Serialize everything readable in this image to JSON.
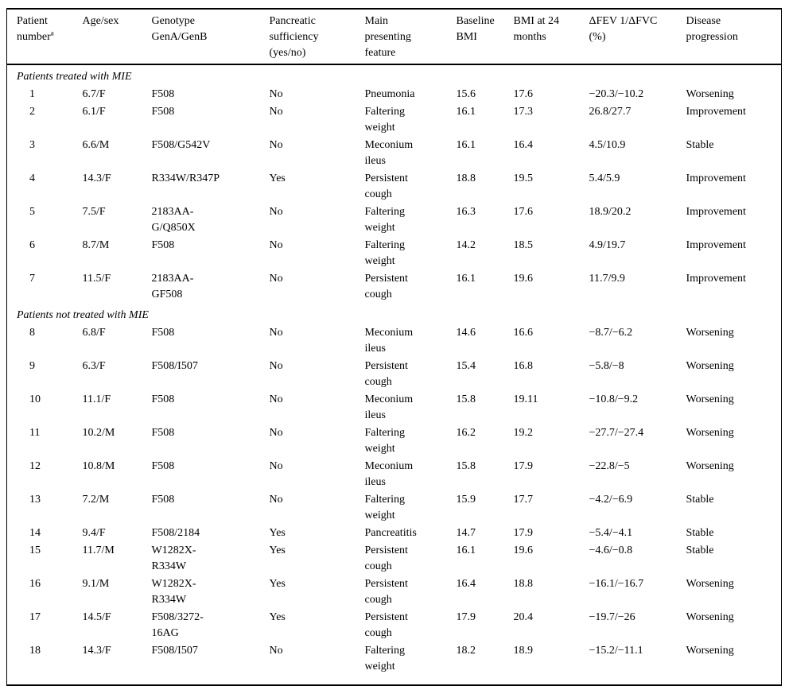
{
  "colors": {
    "text": "#000000",
    "background": "#ffffff",
    "rule": "#000000"
  },
  "table": {
    "columns": [
      {
        "id": "patient-number",
        "label": "Patient\nnumber",
        "superscript": "a"
      },
      {
        "id": "age-sex",
        "label": "Age/sex"
      },
      {
        "id": "genotype",
        "label": "Genotype\nGenA/GenB"
      },
      {
        "id": "pancreatic-sufficiency",
        "label": "Pancreatic\nsufficiency\n(yes/no)"
      },
      {
        "id": "main-presenting-feature",
        "label": "Main\npresenting\nfeature"
      },
      {
        "id": "baseline-bmi",
        "label": "Baseline\nBMI"
      },
      {
        "id": "bmi-24-months",
        "label": "BMI at 24\nmonths"
      },
      {
        "id": "dfev1-dfvc",
        "label": "ΔFEV 1/ΔFVC\n(%)"
      },
      {
        "id": "disease-progression",
        "label": "Disease\nprogression"
      }
    ],
    "sections": [
      {
        "title": "Patients treated with MIE",
        "rows": [
          [
            "1",
            "6.7/F",
            "F508",
            "No",
            "Pneumonia",
            "15.6",
            "17.6",
            "−20.3/−10.2",
            "Worsening"
          ],
          [
            "2",
            "6.1/F",
            "F508",
            "No",
            "Faltering\nweight",
            "16.1",
            "17.3",
            "26.8/27.7",
            "Improvement"
          ],
          [
            "3",
            "6.6/M",
            "F508/G542V",
            "No",
            "Meconium\nileus",
            "16.1",
            "16.4",
            "4.5/10.9",
            "Stable"
          ],
          [
            "4",
            "14.3/F",
            "R334W/R347P",
            "Yes",
            "Persistent\ncough",
            "18.8",
            "19.5",
            "5.4/5.9",
            "Improvement"
          ],
          [
            "5",
            "7.5/F",
            "2183AA-\nG/Q850X",
            "No",
            "Faltering\nweight",
            "16.3",
            "17.6",
            "18.9/20.2",
            "Improvement"
          ],
          [
            "6",
            "8.7/M",
            "F508",
            "No",
            "Faltering\nweight",
            "14.2",
            "18.5",
            "4.9/19.7",
            "Improvement"
          ],
          [
            "7",
            "11.5/F",
            "2183AA-\nGF508",
            "No",
            "Persistent\ncough",
            "16.1",
            "19.6",
            "11.7/9.9",
            "Improvement"
          ]
        ]
      },
      {
        "title": "Patients not treated with MIE",
        "rows": [
          [
            "8",
            "6.8/F",
            "F508",
            "No",
            "Meconium\nileus",
            "14.6",
            "16.6",
            "−8.7/−6.2",
            "Worsening"
          ],
          [
            "9",
            "6.3/F",
            "F508/I507",
            "No",
            "Persistent\ncough",
            "15.4",
            "16.8",
            "−5.8/−8",
            "Worsening"
          ],
          [
            "10",
            "11.1/F",
            "F508",
            "No",
            "Meconium\nileus",
            "15.8",
            "19.11",
            "−10.8/−9.2",
            "Worsening"
          ],
          [
            "11",
            "10.2/M",
            "F508",
            "No",
            "Faltering\nweight",
            "16.2",
            "19.2",
            "−27.7/−27.4",
            "Worsening"
          ],
          [
            "12",
            "10.8/M",
            "F508",
            "No",
            "Meconium\nileus",
            "15.8",
            "17.9",
            "−22.8/−5",
            "Worsening"
          ],
          [
            "13",
            "7.2/M",
            "F508",
            "No",
            "Faltering\nweight",
            "15.9",
            "17.7",
            "−4.2/−6.9",
            "Stable"
          ],
          [
            "14",
            "9.4/F",
            "F508/2184",
            "Yes",
            "Pancreatitis",
            "14.7",
            "17.9",
            "−5.4/−4.1",
            "Stable"
          ],
          [
            "15",
            "11.7/M",
            "W1282X-\nR334W",
            "Yes",
            "Persistent\ncough",
            "16.1",
            "19.6",
            "−4.6/−0.8",
            "Stable"
          ],
          [
            "16",
            "9.1/M",
            "W1282X-\nR334W",
            "Yes",
            "Persistent\ncough",
            "16.4",
            "18.8",
            "−16.1/−16.7",
            "Worsening"
          ],
          [
            "17",
            "14.5/F",
            "F508/3272-\n16AG",
            "Yes",
            "Persistent\ncough",
            "17.9",
            "20.4",
            "−19.7/−26",
            "Worsening"
          ],
          [
            "18",
            "14.3/F",
            "F508/I507",
            "No",
            "Faltering\nweight",
            "18.2",
            "18.9",
            "−15.2/−11.1",
            "Worsening"
          ]
        ]
      }
    ]
  }
}
